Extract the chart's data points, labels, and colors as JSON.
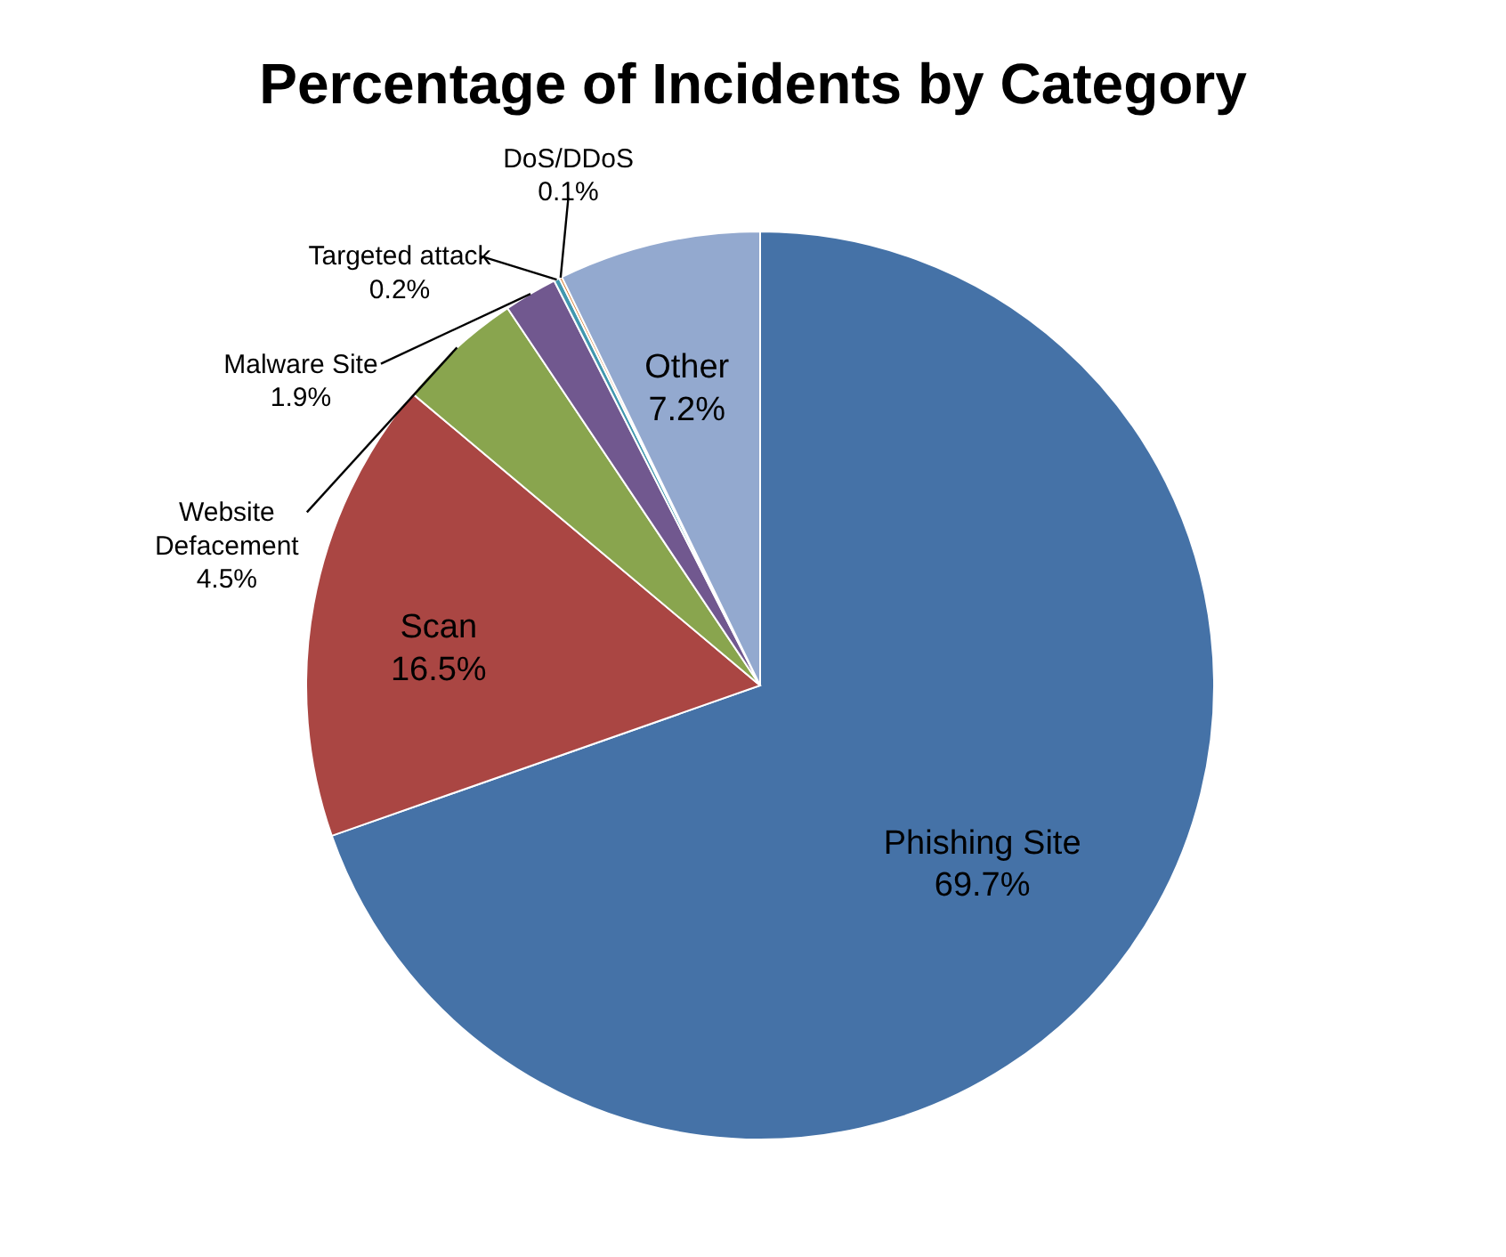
{
  "chart_data": {
    "type": "pie",
    "title": "Percentage of Incidents by Category",
    "categories": [
      "Phishing Site",
      "Scan",
      "Website Defacement",
      "Malware Site",
      "Targeted attack",
      "DoS/DDoS",
      "Other"
    ],
    "values": [
      69.7,
      16.5,
      4.5,
      1.9,
      0.2,
      0.1,
      7.2
    ],
    "colors": [
      "#4572a7",
      "#aa4643",
      "#89a54e",
      "#71588f",
      "#4198af",
      "#db843d",
      "#93a9cf"
    ],
    "value_labels": [
      "69.7%",
      "16.5%",
      "4.5%",
      "1.9%",
      "0.2%",
      "0.1%",
      "7.2%"
    ]
  }
}
